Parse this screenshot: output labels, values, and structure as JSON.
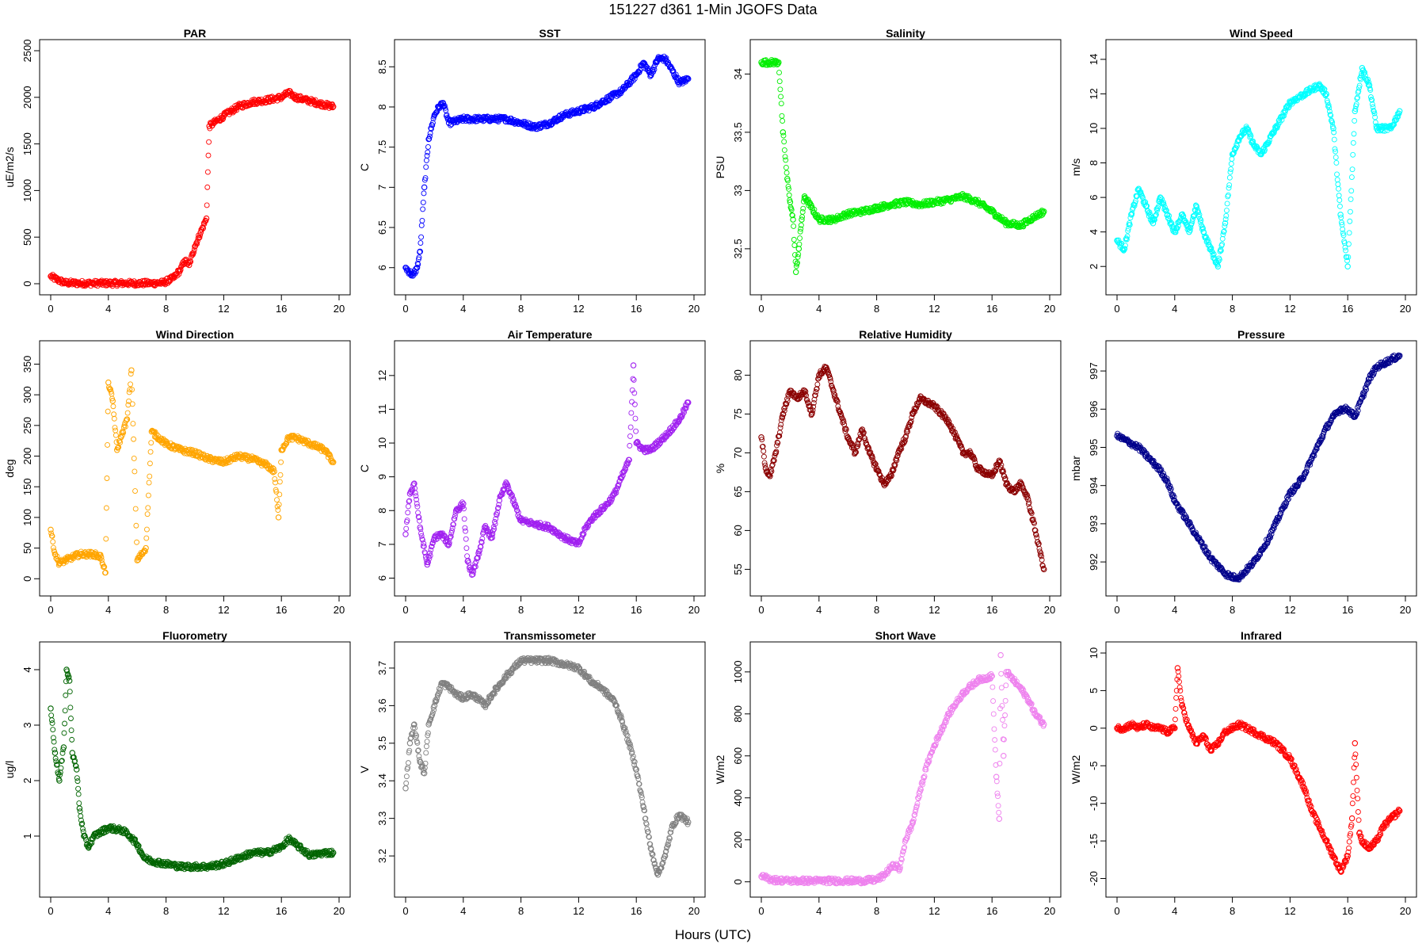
{
  "figure": {
    "title": "151227   d361   1-Min  JGOFS Data",
    "xlabel": "Hours (UTC)"
  },
  "chart_data": [
    {
      "type": "scatter",
      "title": "PAR",
      "ylabel": "uE/m2/s",
      "color": "#ff0000",
      "xlim": [
        0,
        20
      ],
      "ylim": [
        0,
        2500
      ],
      "xticks": [
        0,
        4,
        8,
        12,
        16,
        20
      ],
      "yticks": [
        0,
        500,
        1000,
        1500,
        2000,
        2500
      ],
      "x": [
        0,
        0.5,
        1,
        2,
        3,
        4,
        5,
        6,
        7,
        7.8,
        8.5,
        9,
        9.3,
        9.6,
        10,
        10.4,
        10.8,
        11,
        12,
        13,
        14,
        15,
        16,
        16.5,
        16.8,
        17,
        18,
        19,
        19.6
      ],
      "y": [
        80,
        40,
        10,
        5,
        5,
        5,
        5,
        5,
        5,
        10,
        60,
        150,
        250,
        200,
        400,
        550,
        700,
        1690,
        1800,
        1900,
        1950,
        1970,
        2000,
        2050,
        2020,
        2000,
        1960,
        1920,
        1900
      ]
    },
    {
      "type": "scatter",
      "title": "SST",
      "ylabel": "C",
      "color": "#0000ff",
      "xlim": [
        0,
        20
      ],
      "ylim": [
        5.8,
        8.7
      ],
      "xticks": [
        0,
        4,
        8,
        12,
        16,
        20
      ],
      "yticks": [
        6.0,
        6.5,
        7.0,
        7.5,
        8.0,
        8.5
      ],
      "x": [
        0,
        0.5,
        0.8,
        1,
        1.3,
        1.6,
        2,
        2.3,
        2.6,
        3,
        4,
        5,
        6,
        7,
        8,
        9,
        10,
        11,
        12,
        13,
        14,
        15,
        16,
        16.5,
        17,
        17.5,
        18,
        19,
        19.6
      ],
      "y": [
        6.0,
        5.9,
        6.0,
        6.2,
        7.0,
        7.6,
        7.9,
        8.0,
        8.05,
        7.8,
        7.85,
        7.85,
        7.85,
        7.85,
        7.8,
        7.75,
        7.8,
        7.9,
        7.95,
        8.0,
        8.1,
        8.2,
        8.4,
        8.55,
        8.4,
        8.6,
        8.6,
        8.3,
        8.35
      ]
    },
    {
      "type": "scatter",
      "title": "Salinity",
      "ylabel": "PSU",
      "color": "#00ee00",
      "xlim": [
        0,
        20
      ],
      "ylim": [
        32.2,
        34.2
      ],
      "xticks": [
        0,
        4,
        8,
        12,
        16,
        20
      ],
      "yticks": [
        32.5,
        33.0,
        33.5,
        34.0
      ],
      "x": [
        0,
        0.5,
        1,
        1.2,
        1.5,
        1.8,
        2,
        2.2,
        2.4,
        2.6,
        2.8,
        3,
        4,
        5,
        6,
        7,
        8,
        9,
        10,
        11,
        12,
        13,
        14,
        15,
        16,
        17,
        18,
        19,
        19.6
      ],
      "y": [
        34.1,
        34.1,
        34.1,
        34.1,
        33.5,
        33.1,
        32.9,
        32.75,
        32.3,
        32.5,
        32.75,
        32.95,
        32.75,
        32.75,
        32.8,
        32.82,
        32.85,
        32.88,
        32.9,
        32.88,
        32.9,
        32.92,
        32.95,
        32.9,
        32.82,
        32.72,
        32.7,
        32.78,
        32.82
      ]
    },
    {
      "type": "scatter",
      "title": "Wind Speed",
      "ylabel": "m/s",
      "color": "#00ffff",
      "xlim": [
        0,
        20
      ],
      "ylim": [
        1,
        14.5
      ],
      "xticks": [
        0,
        4,
        8,
        12,
        16,
        20
      ],
      "yticks": [
        2,
        4,
        6,
        8,
        10,
        12,
        14
      ],
      "x": [
        0,
        0.5,
        1,
        1.5,
        2,
        2.5,
        3,
        3.5,
        4,
        4.5,
        5,
        5.5,
        6,
        6.5,
        7,
        7.5,
        8,
        8.5,
        9,
        9.5,
        10,
        11,
        12,
        13,
        14,
        14.5,
        15,
        15.5,
        16,
        16.5,
        17,
        17.5,
        18,
        19,
        19.6
      ],
      "y": [
        3.5,
        3,
        5,
        6.5,
        5.5,
        4.5,
        6,
        5,
        4,
        5,
        4,
        5.5,
        4,
        3,
        2,
        4.5,
        8.5,
        9.5,
        10,
        9,
        8.5,
        10,
        11.5,
        12,
        12.5,
        12,
        10,
        5,
        2,
        11,
        13.5,
        12.5,
        10,
        10,
        11
      ]
    },
    {
      "type": "scatter",
      "title": "Wind Direction",
      "ylabel": "deg",
      "color": "#ffa500",
      "xlim": [
        0,
        20
      ],
      "ylim": [
        -10,
        370
      ],
      "xticks": [
        0,
        4,
        8,
        12,
        16,
        20
      ],
      "yticks": [
        0,
        50,
        100,
        150,
        200,
        250,
        300,
        350
      ],
      "x": [
        0,
        0.3,
        0.6,
        1,
        1.5,
        2,
        2.5,
        3,
        3.5,
        3.8,
        4,
        4.3,
        4.6,
        5,
        5.3,
        5.6,
        6,
        6.3,
        6.6,
        7,
        8,
        9,
        10,
        11,
        12,
        13,
        14,
        15,
        15.5,
        15.8,
        16,
        16.5,
        17,
        17.5,
        18,
        19,
        19.6
      ],
      "y": [
        80,
        40,
        25,
        30,
        35,
        40,
        40,
        40,
        35,
        10,
        320,
        290,
        210,
        240,
        260,
        340,
        30,
        40,
        50,
        240,
        220,
        210,
        205,
        195,
        190,
        200,
        195,
        185,
        175,
        100,
        210,
        230,
        230,
        225,
        220,
        210,
        190
      ]
    },
    {
      "type": "scatter",
      "title": "Air Temperature",
      "ylabel": "C",
      "color": "#a020f0",
      "xlim": [
        0,
        20
      ],
      "ylim": [
        5.8,
        12.7
      ],
      "xticks": [
        0,
        4,
        8,
        12,
        16,
        20
      ],
      "yticks": [
        6,
        7,
        8,
        9,
        10,
        11,
        12
      ],
      "x": [
        0,
        0.3,
        0.6,
        1,
        1.5,
        2,
        2.5,
        3,
        3.5,
        4,
        4.3,
        4.6,
        5,
        5.5,
        6,
        6.5,
        7,
        8,
        9,
        10,
        11,
        12,
        12.5,
        13,
        14,
        14.5,
        15,
        15.5,
        15.8,
        16,
        16.5,
        17,
        18,
        19,
        19.6
      ],
      "y": [
        7.3,
        8.5,
        8.8,
        7.5,
        6.4,
        7.2,
        7.3,
        7.0,
        8.0,
        8.2,
        6.5,
        6.1,
        6.6,
        7.5,
        7.2,
        8.3,
        8.8,
        7.7,
        7.6,
        7.5,
        7.2,
        7.0,
        7.5,
        7.8,
        8.2,
        8.5,
        9.0,
        9.5,
        12.3,
        10.0,
        9.8,
        9.8,
        10.2,
        10.7,
        11.2
      ]
    },
    {
      "type": "scatter",
      "title": "Relative Humidity",
      "ylabel": "%",
      "color": "#8b0000",
      "xlim": [
        0,
        20
      ],
      "ylim": [
        53,
        83
      ],
      "xticks": [
        0,
        4,
        8,
        12,
        16,
        20
      ],
      "yticks": [
        55,
        60,
        65,
        70,
        75,
        80
      ],
      "x": [
        0,
        0.3,
        0.6,
        1,
        1.5,
        2,
        2.5,
        3,
        3.5,
        4,
        4.5,
        5,
        5.5,
        6,
        6.5,
        7,
        7.5,
        8,
        8.5,
        9,
        9.5,
        10,
        10.5,
        11,
        12,
        13,
        13.5,
        14,
        14.5,
        15,
        16,
        16.5,
        17,
        17.5,
        18,
        18.5,
        19,
        19.6
      ],
      "y": [
        72,
        68,
        67,
        70,
        75,
        78,
        77,
        78,
        75,
        80,
        81,
        78,
        75,
        72,
        70,
        73,
        70,
        68,
        66,
        67,
        70,
        72,
        75,
        77,
        76,
        74,
        72,
        70,
        70,
        68,
        67,
        69,
        66,
        65,
        66,
        64,
        60,
        55
      ]
    },
    {
      "type": "scatter",
      "title": "Pressure",
      "ylabel": "mbar",
      "color": "#00008b",
      "xlim": [
        0,
        20
      ],
      "ylim": [
        991.4,
        997.5
      ],
      "xticks": [
        0,
        4,
        8,
        12,
        16,
        20
      ],
      "yticks": [
        992,
        993,
        994,
        995,
        996,
        997
      ],
      "x": [
        0,
        0.5,
        1,
        1.5,
        2,
        2.5,
        3,
        3.5,
        4,
        4.5,
        5,
        5.5,
        6,
        6.5,
        7,
        7.5,
        8,
        8.5,
        9,
        9.5,
        10,
        10.5,
        11,
        11.5,
        12,
        12.5,
        13,
        13.5,
        14,
        14.5,
        15,
        15.5,
        16,
        16.5,
        17,
        17.5,
        18,
        18.5,
        19,
        19.6
      ],
      "y": [
        995.3,
        995.2,
        995.1,
        995.0,
        994.8,
        994.6,
        994.4,
        994.1,
        993.6,
        993.3,
        993.0,
        992.7,
        992.4,
        992.1,
        991.9,
        991.7,
        991.6,
        991.6,
        991.8,
        992.0,
        992.3,
        992.6,
        993.0,
        993.4,
        993.8,
        994.0,
        994.3,
        994.7,
        995.1,
        995.5,
        995.8,
        996.0,
        996.0,
        995.8,
        996.3,
        996.8,
        997.1,
        997.2,
        997.3,
        997.4
      ]
    },
    {
      "type": "scatter",
      "title": "Fluorometry",
      "ylabel": "ug/l",
      "color": "#006400",
      "xlim": [
        0,
        20
      ],
      "ylim": [
        0.1,
        4.3
      ],
      "xticks": [
        0,
        4,
        8,
        12,
        16,
        20
      ],
      "yticks": [
        1,
        2,
        3,
        4
      ],
      "x": [
        0,
        0.3,
        0.6,
        0.9,
        1.1,
        1.3,
        1.5,
        1.8,
        2,
        2.3,
        2.6,
        3,
        4,
        5,
        5.5,
        6,
        6.5,
        7,
        8,
        9,
        10,
        11,
        12,
        13,
        14,
        15,
        16,
        16.5,
        17,
        18,
        19,
        19.6
      ],
      "y": [
        3.3,
        2.5,
        2.0,
        2.6,
        4.0,
        3.8,
        2.5,
        2.2,
        1.5,
        1.0,
        0.8,
        1.0,
        1.15,
        1.1,
        1.0,
        0.85,
        0.6,
        0.55,
        0.5,
        0.45,
        0.45,
        0.45,
        0.5,
        0.6,
        0.7,
        0.7,
        0.8,
        0.95,
        0.85,
        0.65,
        0.7,
        0.7
      ]
    },
    {
      "type": "scatter",
      "title": "Transmissometer",
      "ylabel": "V",
      "color": "#808080",
      "xlim": [
        0,
        20
      ],
      "ylim": [
        3.12,
        3.74
      ],
      "xticks": [
        0,
        4,
        8,
        12,
        16,
        20
      ],
      "yticks": [
        3.2,
        3.3,
        3.4,
        3.5,
        3.6,
        3.7
      ],
      "x": [
        0,
        0.3,
        0.6,
        1,
        1.3,
        1.6,
        2,
        2.5,
        3,
        3.5,
        4,
        4.5,
        5,
        5.5,
        6,
        7,
        8,
        9,
        10,
        11,
        12,
        12.5,
        13,
        13.5,
        14,
        14.5,
        15,
        15.5,
        16,
        16.5,
        17,
        17.5,
        18,
        18.5,
        19,
        19.6
      ],
      "y": [
        3.38,
        3.5,
        3.55,
        3.45,
        3.42,
        3.55,
        3.6,
        3.66,
        3.65,
        3.63,
        3.62,
        3.63,
        3.62,
        3.6,
        3.63,
        3.68,
        3.72,
        3.72,
        3.72,
        3.71,
        3.7,
        3.68,
        3.66,
        3.65,
        3.63,
        3.61,
        3.56,
        3.5,
        3.43,
        3.33,
        3.22,
        3.15,
        3.2,
        3.28,
        3.31,
        3.29
      ]
    },
    {
      "type": "scatter",
      "title": "Short Wave",
      "ylabel": "W/m2",
      "color": "#ee82ee",
      "xlim": [
        0,
        20
      ],
      "ylim": [
        -20,
        1090
      ],
      "xticks": [
        0,
        4,
        8,
        12,
        16,
        20
      ],
      "yticks": [
        0,
        200,
        400,
        600,
        800,
        1000
      ],
      "x": [
        0,
        0.5,
        1,
        2,
        3,
        4,
        5,
        6,
        7,
        8,
        8.5,
        9,
        9.3,
        9.6,
        10,
        10.5,
        11,
        11.5,
        12,
        13,
        14,
        15,
        16,
        16.3,
        16.5,
        16.6,
        16.8,
        17,
        17.5,
        18,
        18.5,
        19,
        19.6
      ],
      "y": [
        25,
        15,
        8,
        5,
        5,
        5,
        5,
        5,
        5,
        10,
        30,
        70,
        80,
        60,
        200,
        280,
        430,
        560,
        650,
        800,
        900,
        960,
        980,
        500,
        300,
        1080,
        600,
        1000,
        960,
        920,
        870,
        800,
        750
      ]
    },
    {
      "type": "scatter",
      "title": "Infrared",
      "ylabel": "W/m2",
      "color": "#ff0000",
      "xlim": [
        0,
        20
      ],
      "ylim": [
        -21,
        10
      ],
      "xticks": [
        0,
        4,
        8,
        12,
        16,
        20
      ],
      "yticks": [
        -20,
        -15,
        -10,
        -5,
        0,
        5,
        10
      ],
      "x": [
        0,
        0.5,
        1,
        1.5,
        2,
        2.5,
        3,
        3.5,
        4,
        4.2,
        4.5,
        5,
        5.5,
        6,
        6.5,
        7,
        7.5,
        8,
        8.5,
        9,
        10,
        11,
        11.5,
        12,
        12.5,
        13,
        13.5,
        14,
        14.5,
        15,
        15.5,
        16,
        16.3,
        16.5,
        16.8,
        17,
        17.5,
        18,
        18.5,
        19,
        19.6
      ],
      "y": [
        0,
        0,
        0.5,
        0,
        0.5,
        0,
        0,
        -0.5,
        0,
        8,
        3,
        0,
        -2,
        -1,
        -3,
        -2,
        -0.5,
        0,
        0.5,
        0,
        -1,
        -2,
        -3,
        -4,
        -6,
        -8,
        -11,
        -13,
        -15,
        -17,
        -19,
        -17,
        -12,
        -2,
        -14,
        -15,
        -16,
        -15,
        -13,
        -12,
        -11
      ]
    }
  ]
}
